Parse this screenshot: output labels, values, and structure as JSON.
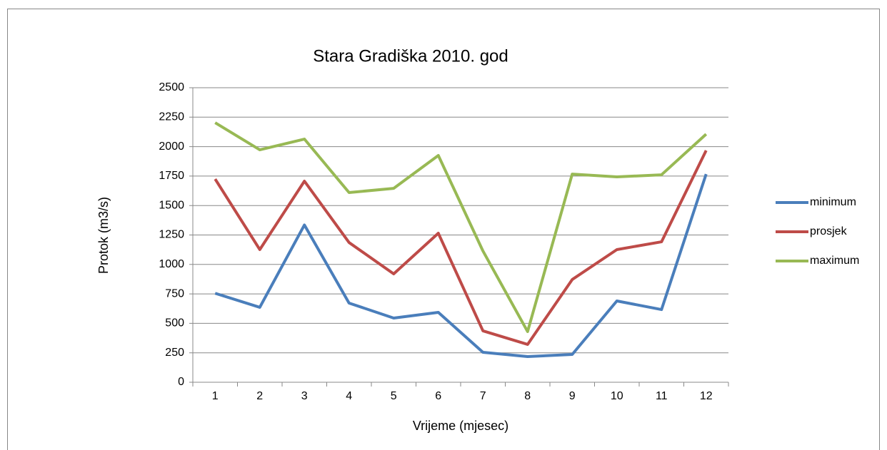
{
  "chart_data": {
    "type": "line",
    "title": "Stara Gradiška 2010. god",
    "x_label": "Vrijeme (mjesec)",
    "y_label": "Protok (m3/s)",
    "categories": [
      "1",
      "2",
      "3",
      "4",
      "5",
      "6",
      "7",
      "8",
      "9",
      "10",
      "11",
      "12"
    ],
    "series": [
      {
        "name": "minimum",
        "color": "#4a7ebb",
        "values": [
          755,
          636,
          1335,
          672,
          545,
          593,
          254,
          218,
          236,
          690,
          617,
          1767
        ]
      },
      {
        "name": "prosjek",
        "color": "#be4b48",
        "values": [
          1725,
          1126,
          1707,
          1186,
          920,
          1265,
          436,
          321,
          872,
          1126,
          1192,
          1967
        ]
      },
      {
        "name": "maximum",
        "color": "#98b954",
        "values": [
          2203,
          1973,
          2064,
          1610,
          1646,
          1925,
          1114,
          430,
          1767,
          1743,
          1761,
          2106
        ]
      }
    ],
    "ylim": [
      0,
      2500
    ],
    "yticks": [
      0,
      250,
      500,
      750,
      1000,
      1250,
      1500,
      1750,
      2000,
      2250,
      2500
    ],
    "grid": true,
    "legend": "right"
  }
}
